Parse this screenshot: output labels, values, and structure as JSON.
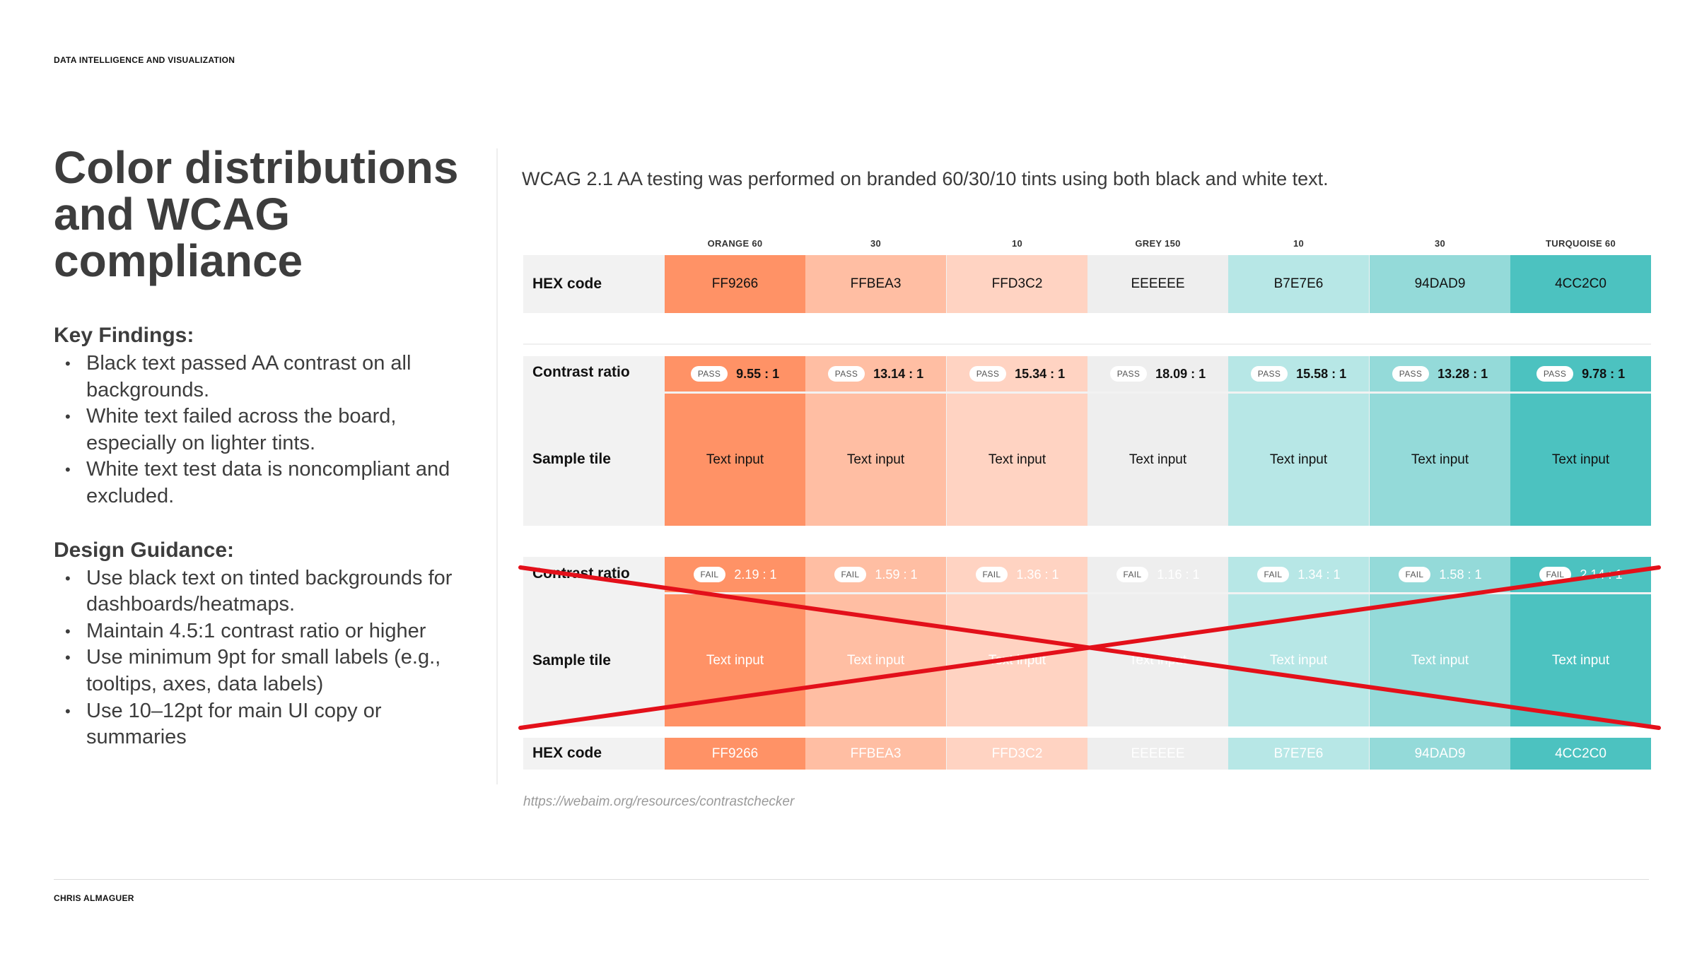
{
  "header": {
    "label": "DATA INTELLIGENCE AND VISUALIZATION"
  },
  "footer": {
    "author": "CHRIS ALMAGUER"
  },
  "title": "Color distributions and WCAG compliance",
  "key_findings": {
    "heading": "Key Findings:",
    "items": [
      "Black text passed AA contrast on all backgrounds.",
      "White text failed across the board, especially on lighter tints.",
      "White text test data is noncompliant and excluded."
    ]
  },
  "design_guidance": {
    "heading": "Design Guidance:",
    "items": [
      "Use black text on tinted backgrounds for dashboards/heatmaps.",
      "Maintain 4.5:1 contrast ratio or higher",
      "Use minimum 9pt for small labels (e.g., tooltips, axes, data labels)",
      "Use 10–12pt for main UI copy or summaries"
    ]
  },
  "intro": "WCAG 2.1 AA testing was performed on branded 60/30/10 tints using both black and white text.",
  "table": {
    "row_labels": {
      "hex": "HEX code",
      "contrast": "Contrast ratio",
      "sample": "Sample tile"
    },
    "columns": [
      {
        "header": "ORANGE 60",
        "color": "#FF9266",
        "hex": "FF9266",
        "black_status": "PASS",
        "black_ratio": "9.55 : 1",
        "white_status": "FAIL",
        "white_ratio": "2.19 : 1",
        "sample_text": "Text input"
      },
      {
        "header": "30",
        "color": "#FFBEA3",
        "hex": "FFBEA3",
        "black_status": "PASS",
        "black_ratio": "13.14 : 1",
        "white_status": "FAIL",
        "white_ratio": "1.59 : 1",
        "sample_text": "Text input"
      },
      {
        "header": "10",
        "color": "#FFD3C2",
        "hex": "FFD3C2",
        "black_status": "PASS",
        "black_ratio": "15.34 : 1",
        "white_status": "FAIL",
        "white_ratio": "1.36 : 1",
        "sample_text": "Text input"
      },
      {
        "header": "GREY 150",
        "color": "#EEEEEE",
        "hex": "EEEEEE",
        "black_status": "PASS",
        "black_ratio": "18.09 : 1",
        "white_status": "FAIL",
        "white_ratio": "1.16 : 1",
        "sample_text": "Text input"
      },
      {
        "header": "10",
        "color": "#B7E7E6",
        "hex": "B7E7E6",
        "black_status": "PASS",
        "black_ratio": "15.58 : 1",
        "white_status": "FAIL",
        "white_ratio": "1.34 : 1",
        "sample_text": "Text input"
      },
      {
        "header": "30",
        "color": "#94DAD9",
        "hex": "94DAD9",
        "black_status": "PASS",
        "black_ratio": "13.28 : 1",
        "white_status": "FAIL",
        "white_ratio": "1.58 : 1",
        "sample_text": "Text input"
      },
      {
        "header": "TURQUOISE 60",
        "color": "#4CC2C0",
        "hex": "4CC2C0",
        "black_status": "PASS",
        "black_ratio": "9.78 : 1",
        "white_status": "FAIL",
        "white_ratio": "2.14 : 1",
        "sample_text": "Text input"
      }
    ]
  },
  "strike_color": "#E3101A",
  "source": "https://webaim.org/resources/contrastchecker"
}
